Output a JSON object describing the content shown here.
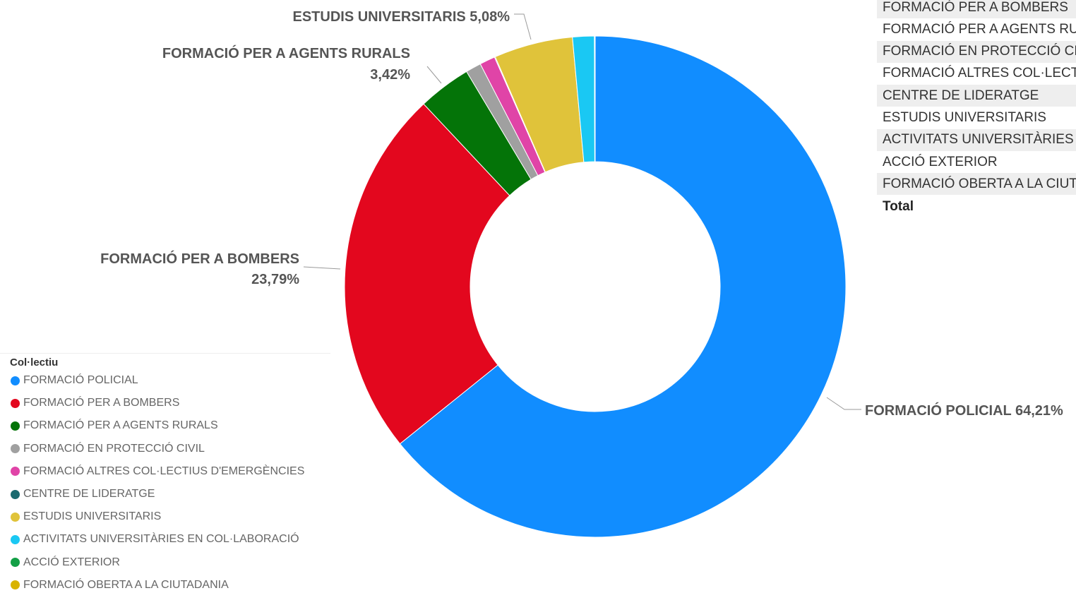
{
  "chart_data": {
    "type": "pie",
    "variant": "donut",
    "categories": [
      "FORMACIÓ POLICIAL",
      "FORMACIÓ PER A BOMBERS",
      "FORMACIÓ PER A AGENTS RURALS",
      "FORMACIÓ EN PROTECCIÓ CIVIL",
      "FORMACIÓ ALTRES COL·LECTIUS D'EMERGÈNCIES",
      "CENTRE DE LIDERATGE",
      "ESTUDIS UNIVERSITARIS",
      "ACTIVITATS UNIVERSITÀRIES EN COL·LABORACIÓ",
      "ACCIÓ EXTERIOR",
      "FORMACIÓ OBERTA A LA CIUTADANIA"
    ],
    "values": [
      64.21,
      23.79,
      3.42,
      1.0,
      1.0,
      0.05,
      5.08,
      1.4,
      0.02,
      0.03
    ],
    "colors": [
      "#118DFF",
      "#E3071E",
      "#047408",
      "#A0A0A0",
      "#E044A7",
      "#1A6A6F",
      "#E0C33A",
      "#1AC8F3",
      "#139F46",
      "#D9B300"
    ],
    "labels": {
      "FORMACIÓ POLICIAL": {
        "name": "FORMACIÓ POLICIAL",
        "pct": "64,21%"
      },
      "FORMACIÓ PER A BOMBERS": {
        "name": "FORMACIÓ PER A BOMBERS",
        "pct": "23,79%"
      },
      "FORMACIÓ PER A AGENTS RURALS": {
        "name": "FORMACIÓ PER A AGENTS RURALS",
        "pct": "3,42%"
      },
      "ESTUDIS UNIVERSITARIS": {
        "name": "ESTUDIS UNIVERSITARIS",
        "pct": "5,08%"
      }
    },
    "legend": {
      "title": "Col·lectiu",
      "position": "bottom-left"
    }
  },
  "table": {
    "rows": [
      "FORMACIÓ PER A BOMBERS",
      "FORMACIÓ PER A AGENTS RU",
      "FORMACIÓ EN PROTECCIÓ CI",
      "FORMACIÓ ALTRES COL·LECTI",
      "CENTRE DE LIDERATGE",
      "ESTUDIS UNIVERSITARIS",
      "ACTIVITATS UNIVERSITÀRIES E",
      "ACCIÓ EXTERIOR",
      "FORMACIÓ OBERTA A LA CIUT"
    ],
    "total_label": "Total"
  }
}
